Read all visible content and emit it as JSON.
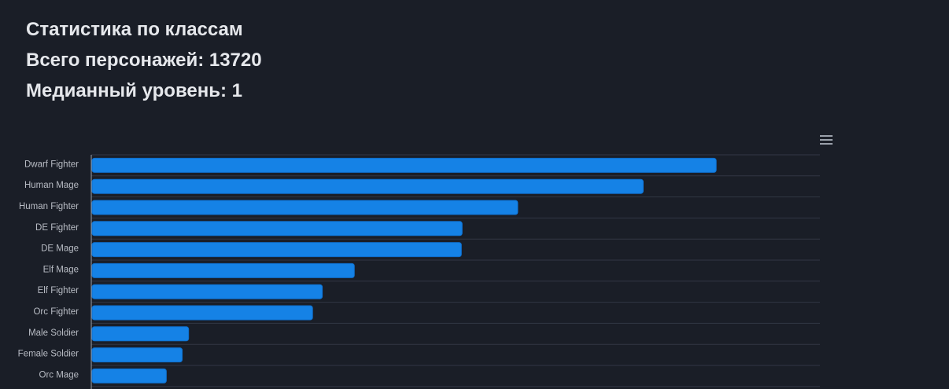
{
  "stats": {
    "title": "Статистика по классам",
    "total_line": "Всего персонажей: 13720",
    "median_line": "Медианный уровень: 1"
  },
  "icons": {
    "menu": "hamburger-menu-icon"
  },
  "colors": {
    "background": "#1a1e27",
    "bar": "#1582e6",
    "bar_stroke": "#0f6fcc",
    "grid": "#323744",
    "axis": "#9aa0aa"
  },
  "chart_data": {
    "type": "bar",
    "orientation": "horizontal",
    "title": "",
    "xlabel": "",
    "ylabel": "",
    "categories": [
      "Dwarf Fighter",
      "Human Mage",
      "Human Fighter",
      "DE Fighter",
      "DE Mage",
      "Elf Mage",
      "Elf Fighter",
      "Orc Fighter",
      "Male Soldier",
      "Female Soldier",
      "Orc Mage"
    ],
    "values": [
      2440,
      2155,
      1665,
      1448,
      1445,
      1027,
      902,
      864,
      380,
      355,
      293
    ],
    "xlim": [
      0,
      2845
    ],
    "grid": true,
    "legend": "none"
  }
}
